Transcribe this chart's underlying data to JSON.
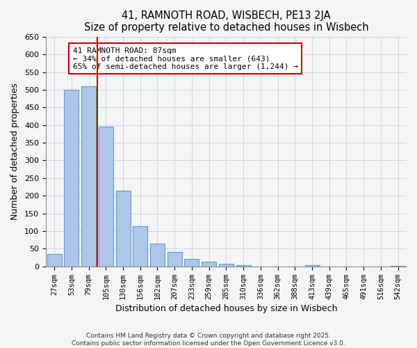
{
  "title": "41, RAMNOTH ROAD, WISBECH, PE13 2JA",
  "subtitle": "Size of property relative to detached houses in Wisbech",
  "xlabel": "Distribution of detached houses by size in Wisbech",
  "ylabel": "Number of detached properties",
  "bar_labels": [
    "27sqm",
    "53sqm",
    "79sqm",
    "105sqm",
    "130sqm",
    "156sqm",
    "182sqm",
    "207sqm",
    "233sqm",
    "259sqm",
    "285sqm",
    "310sqm",
    "336sqm",
    "362sqm",
    "388sqm",
    "413sqm",
    "439sqm",
    "465sqm",
    "491sqm",
    "516sqm",
    "542sqm"
  ],
  "bar_values": [
    35,
    500,
    510,
    395,
    215,
    113,
    65,
    42,
    22,
    13,
    8,
    3,
    0,
    0,
    0,
    3,
    0,
    0,
    0,
    0,
    2
  ],
  "bar_color": "#aec6e8",
  "bar_edge_color": "#5b9bd5",
  "vline_x": 2.5,
  "vline_color": "#cc0000",
  "annotation_text": "41 RAMNOTH ROAD: 87sqm\n← 34% of detached houses are smaller (643)\n65% of semi-detached houses are larger (1,244) →",
  "annotation_box_color": "#ffffff",
  "annotation_box_edge": "#cc0000",
  "ylim": [
    0,
    650
  ],
  "yticks": [
    0,
    50,
    100,
    150,
    200,
    250,
    300,
    350,
    400,
    450,
    500,
    550,
    600,
    650
  ],
  "footer_line1": "Contains HM Land Registry data © Crown copyright and database right 2025.",
  "footer_line2": "Contains public sector information licensed under the Open Government Licence v3.0.",
  "bg_color": "#f5f5f5",
  "grid_color": "#c8d4e8"
}
